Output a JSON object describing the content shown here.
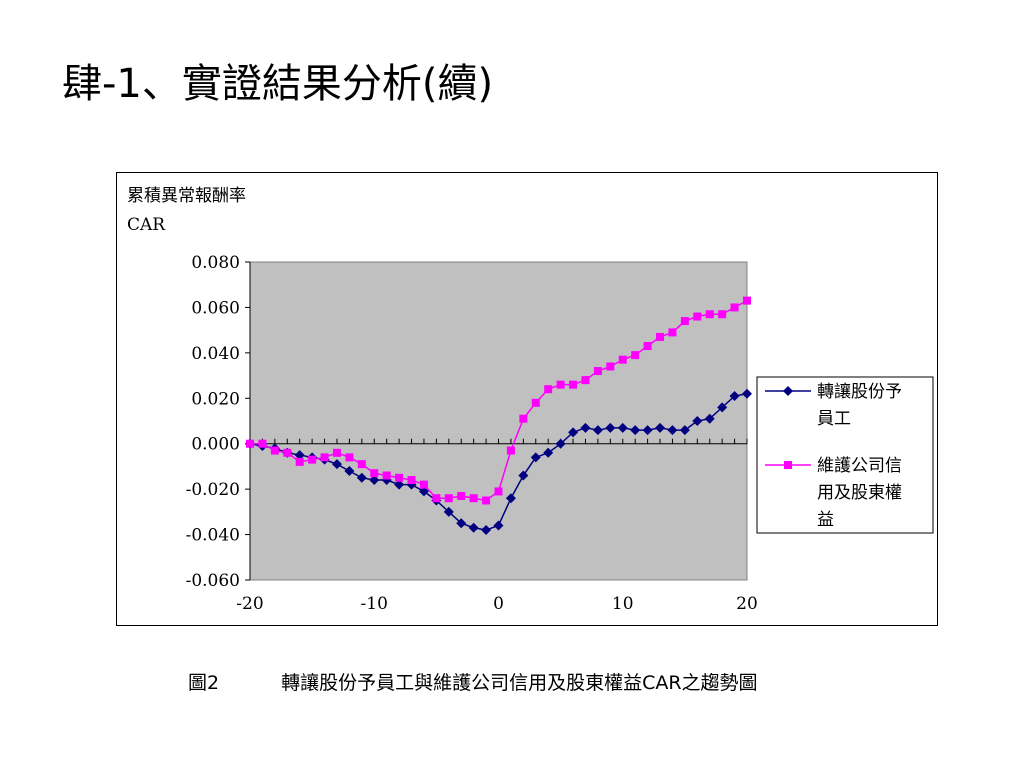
{
  "slide": {
    "title": "肆-1、實證結果分析(續)",
    "caption_number": "圖2",
    "caption_text": "轉讓股份予員工與維護公司信用及股東權益CAR之趨勢圖"
  },
  "chart_data": {
    "type": "line",
    "ylabel_line1": "累積異常報酬率",
    "ylabel_line2": "CAR",
    "xlim": [
      -20,
      20
    ],
    "ylim": [
      -0.06,
      0.08
    ],
    "x_ticks": [
      "-20",
      "-10",
      "0",
      "10",
      "20"
    ],
    "y_ticks": [
      "0.080",
      "0.060",
      "0.040",
      "0.020",
      "0.000",
      "-0.020",
      "-0.040",
      "-0.060"
    ],
    "y_tick_values": [
      0.08,
      0.06,
      0.04,
      0.02,
      0.0,
      -0.02,
      -0.04,
      -0.06
    ],
    "plot_background": "#c0c0c0",
    "legend_position": "right",
    "x": [
      -20,
      -19,
      -18,
      -17,
      -16,
      -15,
      -14,
      -13,
      -12,
      -11,
      -10,
      -9,
      -8,
      -7,
      -6,
      -5,
      -4,
      -3,
      -2,
      -1,
      0,
      1,
      2,
      3,
      4,
      5,
      6,
      7,
      8,
      9,
      10,
      11,
      12,
      13,
      14,
      15,
      16,
      17,
      18,
      19,
      20
    ],
    "series": [
      {
        "name": "轉讓股份予員工",
        "color": "#000080",
        "marker": "diamond",
        "values": [
          0.0,
          -0.001,
          -0.002,
          -0.004,
          -0.005,
          -0.006,
          -0.007,
          -0.009,
          -0.012,
          -0.015,
          -0.016,
          -0.016,
          -0.018,
          -0.018,
          -0.021,
          -0.025,
          -0.03,
          -0.035,
          -0.037,
          -0.038,
          -0.036,
          -0.024,
          -0.014,
          -0.006,
          -0.004,
          0.0,
          0.005,
          0.007,
          0.006,
          0.007,
          0.007,
          0.006,
          0.006,
          0.007,
          0.006,
          0.006,
          0.01,
          0.011,
          0.016,
          0.021,
          0.022
        ]
      },
      {
        "name": "維護公司信用及股東權益",
        "color": "#ff00ff",
        "marker": "square",
        "values": [
          0.0,
          0.0,
          -0.003,
          -0.004,
          -0.008,
          -0.007,
          -0.006,
          -0.004,
          -0.006,
          -0.009,
          -0.013,
          -0.014,
          -0.015,
          -0.016,
          -0.018,
          -0.024,
          -0.024,
          -0.023,
          -0.024,
          -0.025,
          -0.021,
          -0.003,
          0.011,
          0.018,
          0.024,
          0.026,
          0.026,
          0.028,
          0.032,
          0.034,
          0.037,
          0.039,
          0.043,
          0.047,
          0.049,
          0.054,
          0.056,
          0.057,
          0.057,
          0.06,
          0.063
        ]
      }
    ]
  }
}
